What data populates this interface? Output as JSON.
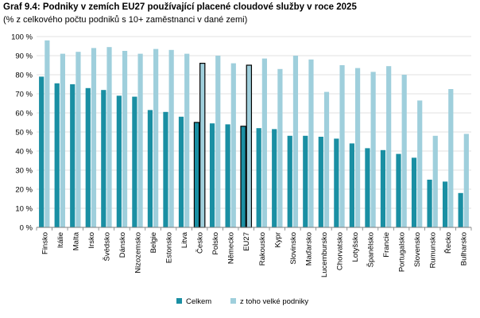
{
  "title": "Graf 9.4: Podniky v zemích EU27 používající placené cloudové služby v roce 2025",
  "subtitle": "(% z celkového počtu podniků s 10+ zaměstnanci v dané zemi)",
  "colors": {
    "total": "#1a8fa3",
    "large": "#9fcfdc",
    "grid": "#d9d9d9",
    "axis": "#7f7f7f",
    "highlight_border": "#000000"
  },
  "chart_data": {
    "type": "bar",
    "title": "Graf 9.4: Podniky v zemích EU27 používající placené cloudové služby v roce 2025",
    "subtitle": "(% z celkového počtu podniků s 10+ zaměstnanci v dané zemi)",
    "xlabel": "",
    "ylabel": "",
    "ylim": [
      0,
      100
    ],
    "yticks": [
      0,
      10,
      20,
      30,
      40,
      50,
      60,
      70,
      80,
      90,
      100
    ],
    "ytick_labels": [
      "0 %",
      "10 %",
      "20 %",
      "30 %",
      "40 %",
      "50 %",
      "60 %",
      "70 %",
      "80 %",
      "90 %",
      "100 %"
    ],
    "grid": true,
    "legend_position": "bottom",
    "highlighted_categories": [
      "Česko",
      "EU27"
    ],
    "categories": [
      "Finsko",
      "Itálie",
      "Malta",
      "Irsko",
      "Švédsko",
      "Dánsko",
      "Nizozemsko",
      "Belgie",
      "Estonsko",
      "Litva",
      "Česko",
      "Polsko",
      "Německo",
      "EU27",
      "Rakousko",
      "Kypr",
      "Slovinsko",
      "Maďarsko",
      "Lucembursko",
      "Chorvatsko",
      "Lotyšsko",
      "Španělsko",
      "Francie",
      "Portugalsko",
      "Slovensko",
      "Rumunsko",
      "Řecko",
      "Bulharsko"
    ],
    "series": [
      {
        "name": "Celkem",
        "color": "#1a8fa3",
        "values": [
          79,
          75.5,
          75,
          73,
          72,
          69,
          68.5,
          61.5,
          60.5,
          58,
          55,
          54.5,
          54,
          53,
          52,
          51.5,
          48,
          48,
          47.5,
          46.5,
          44,
          41.5,
          40.5,
          38.5,
          36.5,
          25,
          24,
          18
        ]
      },
      {
        "name": "z toho velké podniky",
        "color": "#9fcfdc",
        "values": [
          98,
          91,
          92,
          94,
          94.5,
          92.5,
          91,
          93.5,
          93,
          91,
          86,
          90,
          86,
          85,
          88.5,
          83,
          90,
          88,
          71,
          85,
          83.5,
          81.5,
          84.5,
          80,
          66.5,
          48,
          72.5,
          49
        ]
      }
    ]
  }
}
